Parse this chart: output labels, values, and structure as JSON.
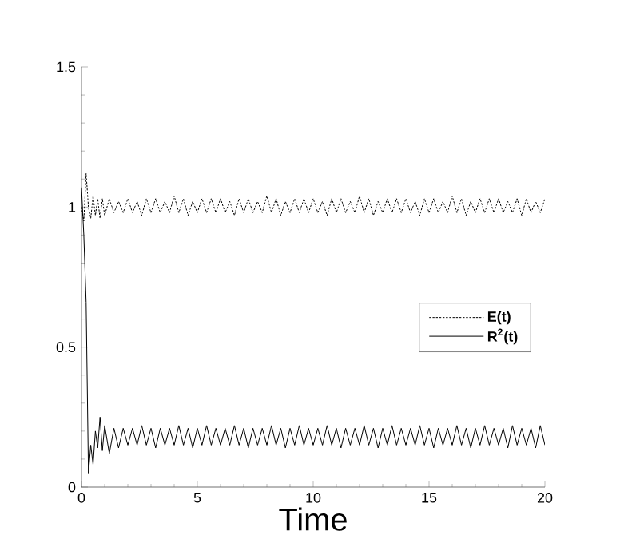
{
  "chart_data": {
    "type": "line",
    "xlabel": "Time",
    "x": [
      0,
      0.1,
      0.2,
      0.3,
      0.4,
      0.5,
      0.6,
      0.7,
      0.8,
      0.9,
      1.0,
      1.2,
      1.4,
      1.6,
      1.8,
      2.0,
      2.2,
      2.4,
      2.6,
      2.8,
      3.0,
      3.2,
      3.4,
      3.6,
      3.8,
      4.0,
      4.2,
      4.4,
      4.6,
      4.8,
      5.0,
      5.2,
      5.4,
      5.6,
      5.8,
      6.0,
      6.2,
      6.4,
      6.6,
      6.8,
      7.0,
      7.2,
      7.4,
      7.6,
      7.8,
      8.0,
      8.2,
      8.4,
      8.6,
      8.8,
      9.0,
      9.2,
      9.4,
      9.6,
      9.8,
      10.0,
      10.2,
      10.4,
      10.6,
      10.8,
      11.0,
      11.2,
      11.4,
      11.6,
      11.8,
      12.0,
      12.2,
      12.4,
      12.6,
      12.8,
      13.0,
      13.2,
      13.4,
      13.6,
      13.8,
      14.0,
      14.2,
      14.4,
      14.6,
      14.8,
      15.0,
      15.2,
      15.4,
      15.6,
      15.8,
      16.0,
      16.2,
      16.4,
      16.6,
      16.8,
      17.0,
      17.2,
      17.4,
      17.6,
      17.8,
      18.0,
      18.2,
      18.4,
      18.6,
      18.8,
      19.0,
      19.2,
      19.4,
      19.6,
      19.8,
      20.0
    ],
    "series": [
      {
        "name": "E(t)",
        "color": "#000000",
        "line_style": "dashed",
        "values": [
          1.0,
          0.95,
          1.12,
          1.0,
          0.96,
          1.04,
          0.97,
          1.03,
          0.96,
          1.03,
          0.97,
          1.03,
          0.98,
          1.02,
          0.98,
          1.03,
          0.98,
          1.02,
          0.97,
          1.03,
          0.98,
          1.03,
          0.98,
          1.02,
          0.98,
          1.04,
          0.98,
          1.03,
          0.97,
          1.02,
          0.98,
          1.03,
          0.98,
          1.03,
          0.98,
          1.03,
          0.98,
          1.02,
          0.97,
          1.03,
          0.98,
          1.03,
          0.98,
          1.02,
          0.98,
          1.04,
          0.98,
          1.03,
          0.97,
          1.02,
          0.98,
          1.03,
          0.98,
          1.03,
          0.98,
          1.03,
          0.98,
          1.02,
          0.97,
          1.03,
          0.98,
          1.03,
          0.98,
          1.02,
          0.98,
          1.04,
          0.98,
          1.03,
          0.97,
          1.02,
          0.98,
          1.03,
          0.98,
          1.03,
          0.98,
          1.03,
          0.98,
          1.02,
          0.97,
          1.03,
          0.98,
          1.03,
          0.98,
          1.02,
          0.98,
          1.04,
          0.98,
          1.03,
          0.97,
          1.02,
          0.98,
          1.03,
          0.98,
          1.03,
          0.98,
          1.03,
          0.98,
          1.02,
          0.98,
          1.03,
          0.97,
          1.03,
          0.98,
          1.02,
          0.98,
          1.03
        ]
      },
      {
        "name": "R$^{2}$(t)",
        "color": "#000000",
        "line_style": "solid",
        "values": [
          1.07,
          0.9,
          0.66,
          0.05,
          0.15,
          0.08,
          0.2,
          0.14,
          0.25,
          0.13,
          0.22,
          0.12,
          0.21,
          0.14,
          0.21,
          0.15,
          0.21,
          0.15,
          0.22,
          0.15,
          0.21,
          0.14,
          0.21,
          0.15,
          0.21,
          0.15,
          0.22,
          0.15,
          0.21,
          0.14,
          0.21,
          0.15,
          0.22,
          0.15,
          0.21,
          0.15,
          0.21,
          0.15,
          0.22,
          0.15,
          0.21,
          0.14,
          0.21,
          0.15,
          0.21,
          0.15,
          0.22,
          0.15,
          0.21,
          0.14,
          0.21,
          0.15,
          0.22,
          0.15,
          0.21,
          0.15,
          0.21,
          0.15,
          0.22,
          0.15,
          0.21,
          0.14,
          0.21,
          0.15,
          0.21,
          0.15,
          0.22,
          0.15,
          0.21,
          0.14,
          0.21,
          0.15,
          0.22,
          0.15,
          0.21,
          0.15,
          0.21,
          0.15,
          0.22,
          0.15,
          0.21,
          0.14,
          0.21,
          0.15,
          0.21,
          0.15,
          0.22,
          0.15,
          0.21,
          0.14,
          0.21,
          0.15,
          0.22,
          0.15,
          0.21,
          0.15,
          0.21,
          0.14,
          0.22,
          0.15,
          0.21,
          0.15,
          0.21,
          0.14,
          0.22,
          0.15
        ]
      }
    ],
    "xlim": [
      0,
      20
    ],
    "ylim": [
      0,
      1.5
    ],
    "xticks": [
      0,
      5,
      10,
      15,
      20
    ],
    "yticks": [
      0,
      0.5,
      1,
      1.5
    ],
    "legend": "right",
    "grid": false
  }
}
